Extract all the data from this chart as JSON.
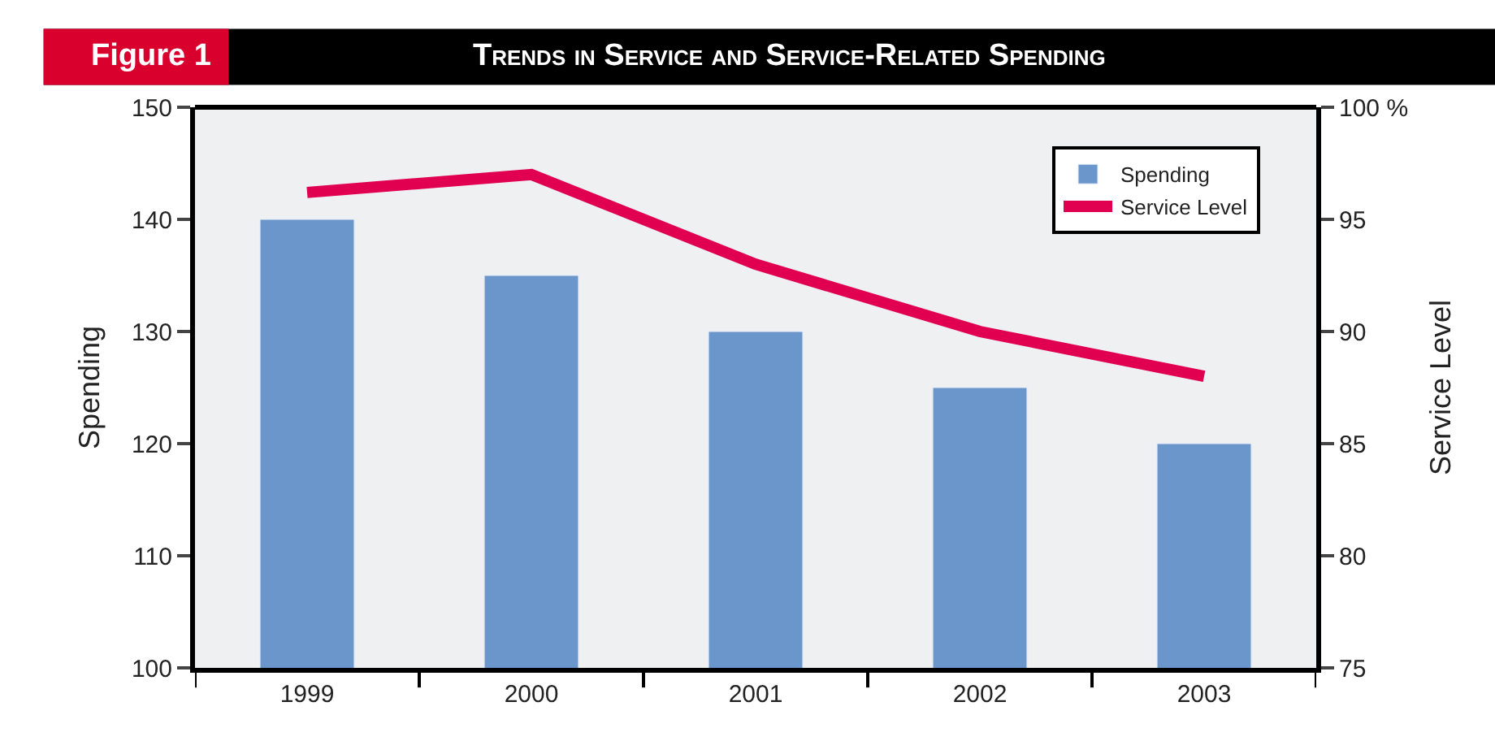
{
  "chart_data": {
    "type": "bar",
    "title": "Trends in Service and Service-Related Spending",
    "annotations": [
      "Figure 1"
    ],
    "categories": [
      "1999",
      "2000",
      "2001",
      "2002",
      "2003"
    ],
    "series": [
      {
        "name": "Spending",
        "color": "#6a96cb",
        "values": [
          140,
          135,
          130,
          125,
          120
        ]
      },
      {
        "name": "Service Level",
        "type": "line",
        "axis": "y2",
        "color": "#e0004f",
        "values": [
          96.2,
          97,
          93,
          90,
          88
        ]
      }
    ],
    "ylabel": "Spending",
    "y2label": "Service Level",
    "ylim": [
      100,
      150
    ],
    "yticks": [
      100,
      110,
      120,
      130,
      140,
      150
    ],
    "y2lim": [
      75,
      100
    ],
    "y2ticks": [
      75,
      80,
      85,
      90,
      95,
      {
        "value": 100,
        "label": "100 %"
      }
    ],
    "legend": "top right",
    "grid": false,
    "marker": "none"
  }
}
